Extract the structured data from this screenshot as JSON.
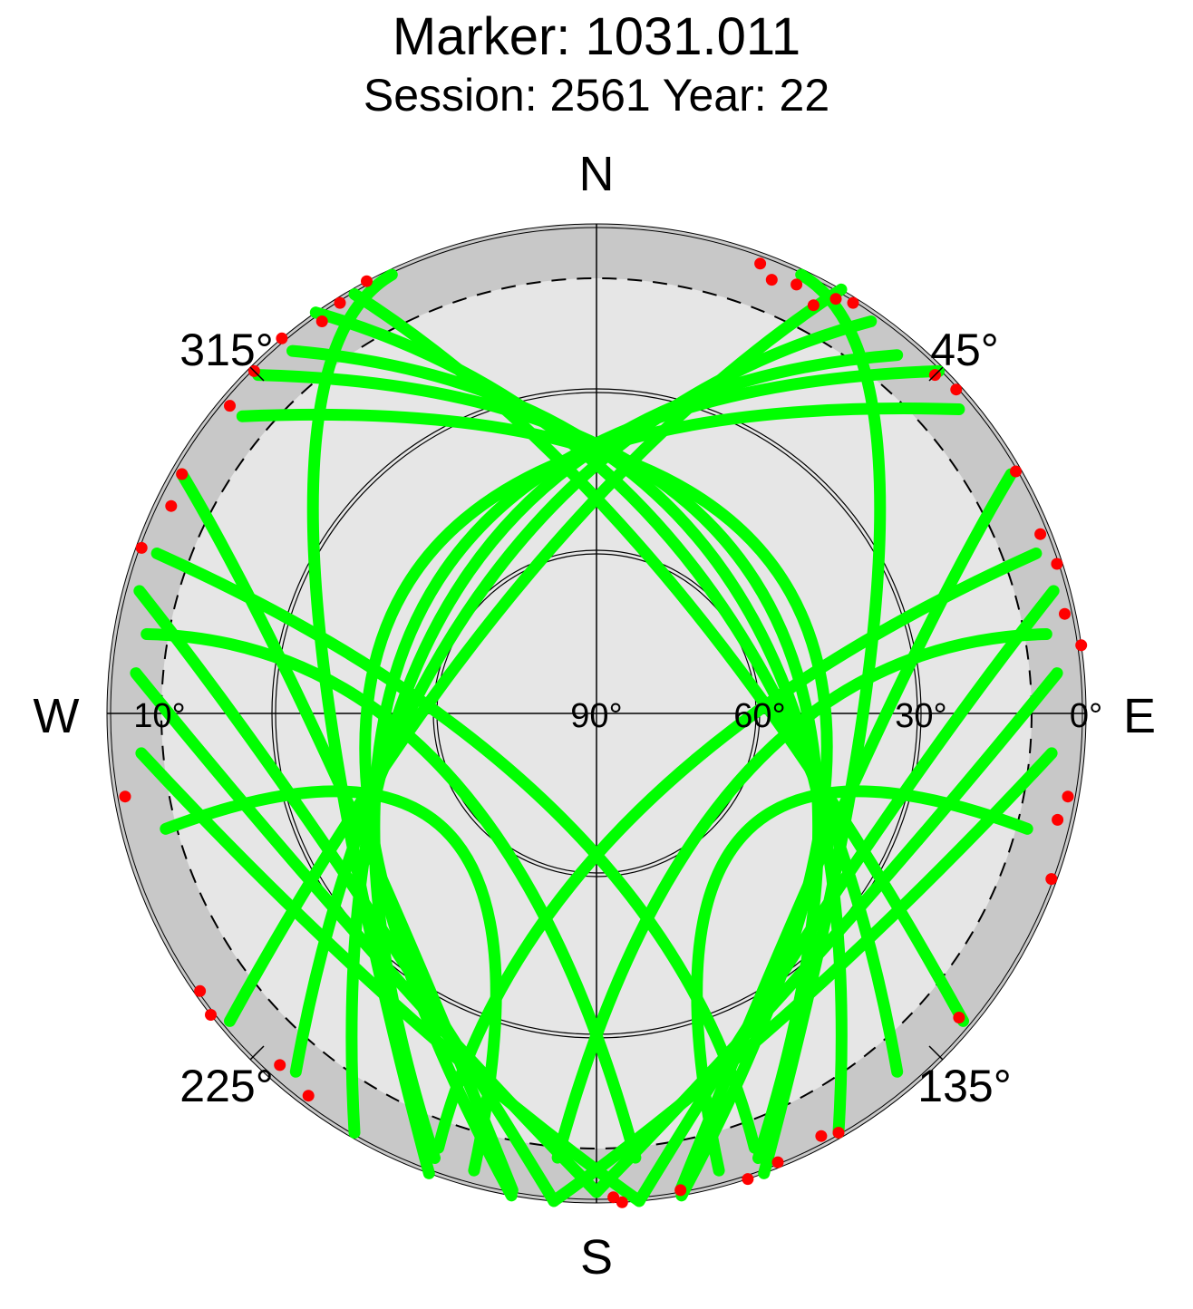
{
  "chart_data": {
    "type": "scatter",
    "title": "Marker: 1031.011",
    "subtitle": "Session: 2561 Year: 22",
    "projection": "polar-skyplot",
    "azimuth_direction": "clockwise from north",
    "compass": {
      "north": "N",
      "east": "E",
      "south": "S",
      "west": "W"
    },
    "azimuth_ticks": [
      {
        "az": 45,
        "label": "45°"
      },
      {
        "az": 135,
        "label": "135°"
      },
      {
        "az": 225,
        "label": "225°"
      },
      {
        "az": 315,
        "label": "315°"
      }
    ],
    "elevation_ticks": [
      {
        "el": 90,
        "label": "90°"
      },
      {
        "el": 60,
        "label": "60°"
      },
      {
        "el": 30,
        "label": "30°"
      },
      {
        "el": 0,
        "label": "0°"
      }
    ],
    "elevation_mask": {
      "el": 10,
      "label": "10°"
    },
    "grid_circles_elevation": [
      30,
      60
    ],
    "colors": {
      "above_mask": "#00ff00",
      "below_mask": "#ff0000",
      "outer_band": "#c8c8c8",
      "inner_fill": "#e6e6e6",
      "north_gap": "#c8c8c8"
    },
    "series": [
      {
        "color": "#00ff00",
        "tracks": [
          {
            "start": [
              330,
              1
            ],
            "peak": [
              28,
              62
            ],
            "end": [
              130,
              2
            ]
          },
          {
            "start": [
              325,
              0
            ],
            "peak": [
              35,
              58
            ],
            "end": [
              140,
              4
            ]
          },
          {
            "start": [
              320,
              3
            ],
            "peak": [
              42,
              55
            ],
            "end": [
              150,
              1
            ]
          },
          {
            "start": [
              315,
              2
            ],
            "peak": [
              50,
              52
            ],
            "end": [
              160,
              3
            ]
          },
          {
            "start": [
              310,
              5
            ],
            "peak": [
              58,
              48
            ],
            "end": [
              170,
              0
            ]
          },
          {
            "start": [
              30,
              0
            ],
            "peak": [
              332,
              62
            ],
            "end": [
              230,
              2
            ]
          },
          {
            "start": [
              35,
              2
            ],
            "peak": [
              325,
              58
            ],
            "end": [
              220,
              4
            ]
          },
          {
            "start": [
              40,
              4
            ],
            "peak": [
              318,
              55
            ],
            "end": [
              210,
              1
            ]
          },
          {
            "start": [
              45,
              1
            ],
            "peak": [
              310,
              52
            ],
            "end": [
              200,
              3
            ]
          },
          {
            "start": [
              50,
              3
            ],
            "peak": [
              302,
              48
            ],
            "end": [
              190,
              0
            ]
          },
          {
            "start": [
              335,
              1
            ],
            "peak": [
              300,
              30
            ],
            "end": [
              200,
              0
            ]
          },
          {
            "start": [
              300,
              2
            ],
            "peak": [
              260,
              40
            ],
            "end": [
              190,
              1
            ]
          },
          {
            "start": [
              285,
              3
            ],
            "peak": [
              240,
              35
            ],
            "end": [
              185,
              0
            ]
          },
          {
            "start": [
              275,
              5
            ],
            "peak": [
              225,
              30
            ],
            "end": [
              180,
              2
            ]
          },
          {
            "start": [
              265,
              6
            ],
            "peak": [
              215,
              25
            ],
            "end": [
              175,
              0
            ]
          },
          {
            "start": [
              25,
              1
            ],
            "peak": [
              60,
              30
            ],
            "end": [
              160,
              0
            ]
          },
          {
            "start": [
              60,
              2
            ],
            "peak": [
              100,
              40
            ],
            "end": [
              170,
              1
            ]
          },
          {
            "start": [
              75,
              3
            ],
            "peak": [
              120,
              35
            ],
            "end": [
              175,
              0
            ]
          },
          {
            "start": [
              85,
              5
            ],
            "peak": [
              135,
              30
            ],
            "end": [
              180,
              2
            ]
          },
          {
            "start": [
              95,
              6
            ],
            "peak": [
              145,
              25
            ],
            "end": [
              185,
              0
            ]
          },
          {
            "start": [
              290,
              4
            ],
            "peak": [
              200,
              70
            ],
            "end": [
              160,
              5
            ]
          },
          {
            "start": [
              70,
              4
            ],
            "peak": [
              160,
              70
            ],
            "end": [
              200,
              5
            ]
          },
          {
            "start": [
              255,
              8
            ],
            "peak": [
              230,
              55
            ],
            "end": [
              195,
              3
            ]
          },
          {
            "start": [
              105,
              8
            ],
            "peak": [
              130,
              55
            ],
            "end": [
              165,
              3
            ]
          },
          {
            "start": [
              280,
              6
            ],
            "peak": [
              250,
              60
            ],
            "end": [
              175,
              8
            ]
          },
          {
            "start": [
              80,
              6
            ],
            "peak": [
              110,
              60
            ],
            "end": [
              185,
              8
            ]
          }
        ]
      },
      {
        "color": "#ff0000",
        "points": [
          [
            20,
            2
          ],
          [
            22,
            4
          ],
          [
            25,
            3
          ],
          [
            28,
            5
          ],
          [
            30,
            2
          ],
          [
            32,
            1
          ],
          [
            45,
            2
          ],
          [
            48,
            1
          ],
          [
            60,
            1
          ],
          [
            68,
            2
          ],
          [
            72,
            1
          ],
          [
            78,
            2
          ],
          [
            82,
            0
          ],
          [
            100,
            2
          ],
          [
            103,
            3
          ],
          [
            110,
            1
          ],
          [
            130,
            3
          ],
          [
            150,
            1
          ],
          [
            152,
            2
          ],
          [
            158,
            1
          ],
          [
            162,
            0
          ],
          [
            170,
            1
          ],
          [
            177,
            0
          ],
          [
            178,
            1
          ],
          [
            217,
            2
          ],
          [
            222,
            3
          ],
          [
            232,
            0
          ],
          [
            235,
            1
          ],
          [
            260,
            2
          ],
          [
            290,
            1
          ],
          [
            296,
            3
          ],
          [
            300,
            2
          ],
          [
            310,
            2
          ],
          [
            315,
            1
          ],
          [
            320,
            0
          ],
          [
            325,
            2
          ],
          [
            328,
            1
          ],
          [
            332,
            0
          ]
        ]
      }
    ]
  }
}
